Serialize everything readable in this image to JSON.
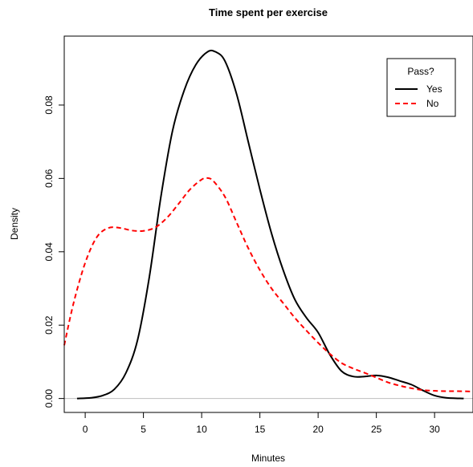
{
  "chart_data": {
    "type": "line",
    "title": "Time spent per exercise",
    "xlabel": "Minutes",
    "ylabel": "Density",
    "xlim": [
      -1.8,
      33.3
    ],
    "ylim": [
      -0.0038,
      0.0988
    ],
    "xticks": [
      0,
      5,
      10,
      15,
      20,
      25,
      30
    ],
    "yticks": [
      0.0,
      0.02,
      0.04,
      0.06,
      0.08
    ],
    "xtick_labels": [
      "0",
      "5",
      "10",
      "15",
      "20",
      "25",
      "30"
    ],
    "ytick_labels": [
      "0.00",
      "0.02",
      "0.04",
      "0.06",
      "0.08"
    ],
    "baseline": 0,
    "grid": false,
    "legend": {
      "title": "Pass?",
      "position": "top-right"
    },
    "series": [
      {
        "name": "Yes",
        "color": "#000000",
        "dash": "solid",
        "x": [
          -0.7,
          0.5,
          1.5,
          2.5,
          3.5,
          4.5,
          5.5,
          6.5,
          7.5,
          8.5,
          9.5,
          10.5,
          11.2,
          12.0,
          13.0,
          14.0,
          15.0,
          16.0,
          17.0,
          18.0,
          19.0,
          20.0,
          21.0,
          22.0,
          23.0,
          24.0,
          25.0,
          26.0,
          27.0,
          28.0,
          29.0,
          30.0,
          31.0,
          32.5
        ],
        "y": [
          0.0,
          0.0002,
          0.0008,
          0.0025,
          0.007,
          0.016,
          0.033,
          0.055,
          0.073,
          0.084,
          0.091,
          0.0945,
          0.0945,
          0.092,
          0.083,
          0.07,
          0.057,
          0.045,
          0.035,
          0.027,
          0.022,
          0.018,
          0.012,
          0.0075,
          0.006,
          0.006,
          0.0063,
          0.0058,
          0.0048,
          0.0038,
          0.0022,
          0.0008,
          0.0002,
          0.0
        ]
      },
      {
        "name": "No",
        "color": "#ff0000",
        "dash": "dashed",
        "x": [
          -1.8,
          -1.0,
          0.0,
          1.0,
          2.0,
          3.0,
          4.0,
          5.0,
          6.0,
          7.0,
          8.0,
          9.0,
          10.0,
          10.5,
          11.0,
          12.0,
          13.0,
          14.0,
          15.0,
          16.0,
          17.0,
          18.0,
          19.0,
          20.0,
          21.0,
          22.0,
          23.0,
          24.0,
          25.0,
          26.0,
          27.0,
          28.0,
          29.0,
          30.0,
          31.0,
          32.0,
          33.3
        ],
        "y": [
          0.0145,
          0.026,
          0.037,
          0.044,
          0.0465,
          0.0465,
          0.0458,
          0.0457,
          0.0466,
          0.0492,
          0.053,
          0.057,
          0.0597,
          0.0601,
          0.0593,
          0.055,
          0.048,
          0.041,
          0.035,
          0.03,
          0.026,
          0.022,
          0.0185,
          0.0152,
          0.0122,
          0.0097,
          0.0082,
          0.007,
          0.0057,
          0.0044,
          0.0035,
          0.0028,
          0.0023,
          0.0021,
          0.002,
          0.002,
          0.0019
        ]
      }
    ]
  }
}
